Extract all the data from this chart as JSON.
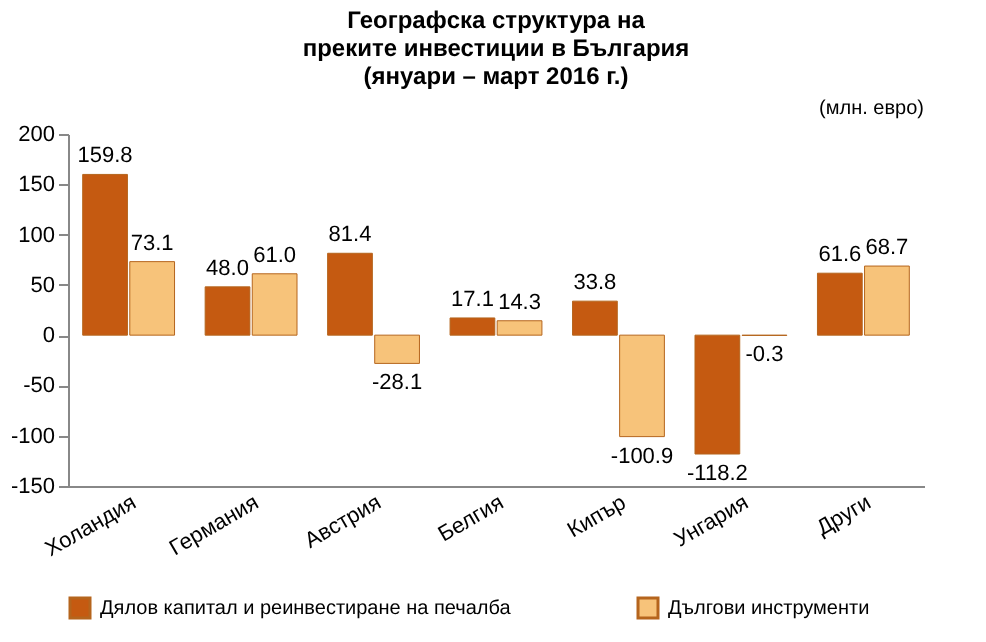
{
  "chart_data": {
    "type": "bar",
    "title": "Географска структура на преките инвестиции в България",
    "subtitle": "(януари – март 2016 г.)",
    "annotations": [
      "(млн. евро)"
    ],
    "categories": [
      "Холандия",
      "Германия",
      "Австрия",
      "Белгия",
      "Кипър",
      "Унгария",
      "Други"
    ],
    "series": [
      {
        "name": "Дялов капитал и реинвестиране на печалба",
        "color": "#c55a11",
        "values": [
          159.8,
          48.0,
          81.4,
          17.1,
          33.8,
          -118.2,
          61.6
        ],
        "value_labels": [
          "159.8",
          "48.0",
          "81.4",
          "17.1",
          "33.8",
          "-118.2",
          "61.6"
        ]
      },
      {
        "name": "Дългови инструменти",
        "color": "#f7c37a",
        "values": [
          73.1,
          61.0,
          -28.1,
          14.3,
          -100.9,
          -0.3,
          68.7
        ],
        "value_labels": [
          "73.1",
          "61.0",
          "-28.1",
          "14.3",
          "-100.9",
          "-0.3",
          "68.7"
        ]
      }
    ],
    "ylim": [
      -150,
      200
    ],
    "yticks": [
      -150,
      -100,
      -50,
      0,
      50,
      100,
      150,
      200
    ],
    "legend": "bottom"
  }
}
